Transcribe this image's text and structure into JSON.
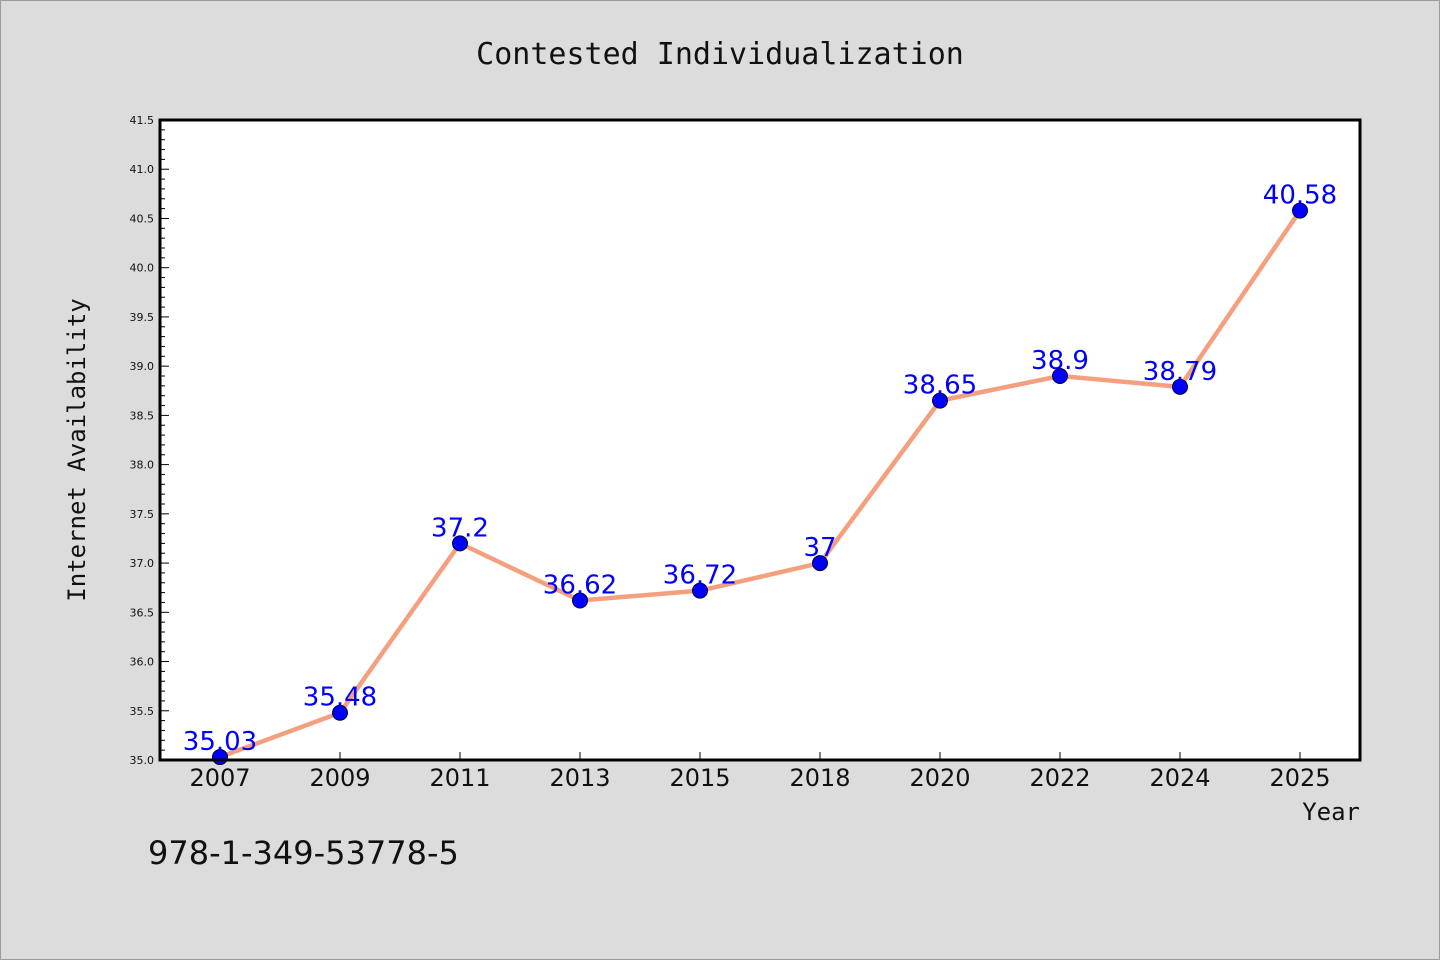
{
  "chart_data": {
    "type": "line",
    "title": "Contested Individualization",
    "xlabel": "Year",
    "ylabel": "Internet Availability",
    "categories": [
      "2007",
      "2009",
      "2011",
      "2013",
      "2015",
      "2018",
      "2020",
      "2022",
      "2024",
      "2025"
    ],
    "series": [
      {
        "values": [
          35.03,
          35.48,
          37.2,
          36.62,
          36.72,
          37,
          38.65,
          38.9,
          38.79,
          40.58
        ],
        "data_labels": [
          "35.03",
          "35.48",
          "37.2",
          "36.62",
          "36.72",
          "37",
          "38.65",
          "38.9",
          "38.79",
          "40.58"
        ]
      }
    ],
    "ylim": [
      35.0,
      41.5
    ],
    "yticks": [
      "35.0",
      "35.5",
      "36.0",
      "36.5",
      "37.0",
      "37.5",
      "38.0",
      "38.5",
      "39.0",
      "39.5",
      "40.0",
      "40.5",
      "41.0",
      "41.5"
    ],
    "grid": false,
    "legend": "none",
    "colors": {
      "line": "#f4a07e",
      "marker": "#0000ff",
      "labels": "#0000ff",
      "background": "#dcdcdc",
      "plot_area": "#ffffff"
    }
  },
  "footnote": "978-1-349-53778-5"
}
